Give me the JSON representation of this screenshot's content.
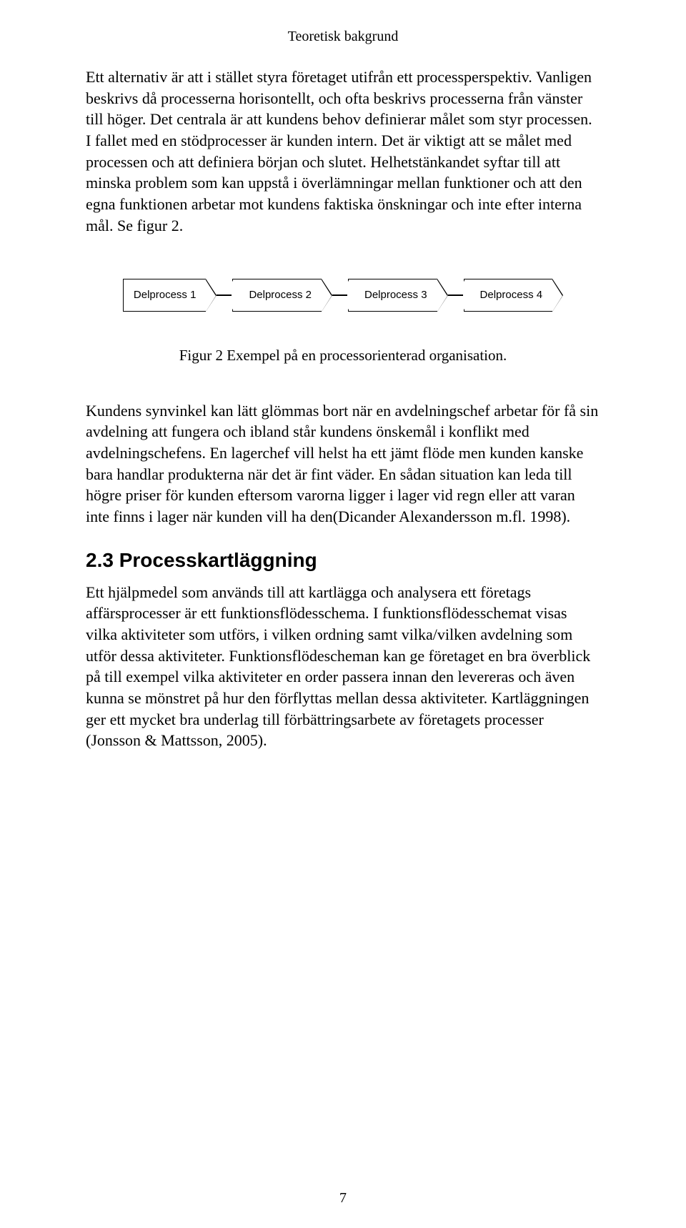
{
  "running_head": "Teoretisk bakgrund",
  "para1": "Ett alternativ är att i stället styra företaget utifrån ett processperspektiv. Vanligen beskrivs då processerna horisontellt, och ofta beskrivs processerna från vänster till höger. Det centrala är att kundens behov definierar målet som styr processen. I fallet med en stödprocesser är kunden intern. Det är viktigt att se målet med processen och att definiera början och slutet. Helhetstänkandet syftar till att minska problem som kan uppstå i överlämningar mellan funktioner och att den egna funktionen arbetar mot kundens faktiska önskningar och inte efter interna mål. Se figur 2.",
  "flow": {
    "type": "flowchart",
    "direction": "horizontal",
    "node_border_color": "#000000",
    "node_fill": "#ffffff",
    "node_font_family": "Arial",
    "node_font_size": 15,
    "connector_color": "#000000",
    "nodes": [
      "Delprocess 1",
      "Delprocess 2",
      "Delprocess 3",
      "Delprocess 4"
    ]
  },
  "figure_caption": "Figur 2 Exempel på en processorienterad organisation.",
  "para2": "Kundens synvinkel kan lätt glömmas bort när en avdelningschef arbetar för få sin avdelning att fungera och ibland står kundens önskemål i konflikt med avdelningschefens. En lagerchef vill helst ha ett jämt flöde men kunden kanske bara handlar produkterna när det är fint väder. En sådan situation kan leda till högre priser för kunden eftersom varorna ligger i lager vid regn eller att varan inte finns i lager när kunden vill ha den(Dicander Alexandersson m.fl. 1998).",
  "section_heading": "2.3 Processkartläggning",
  "para3": "Ett hjälpmedel som används till att kartlägga och analysera ett företags affärsprocesser är ett funktionsflödesschema. I funktionsflödesschemat visas vilka aktiviteter som utförs, i vilken ordning samt vilka/vilken avdelning som utför dessa aktiviteter. Funktionsflödescheman kan ge företaget en bra överblick på till exempel vilka aktiviteter en order passera innan den levereras och även kunna se mönstret på hur den förflyttas mellan dessa aktiviteter. Kartläggningen ger ett mycket bra underlag till förbättringsarbete av företagets processer (Jonsson & Mattsson, 2005).",
  "page_number": "7",
  "colors": {
    "background": "#ffffff",
    "text": "#000000"
  },
  "typography": {
    "body_font": "Garamond/Georgia serif",
    "body_size_pt": 16,
    "heading_font": "Verdana sans-serif",
    "heading_size_pt": 21,
    "heading_weight": "bold"
  }
}
